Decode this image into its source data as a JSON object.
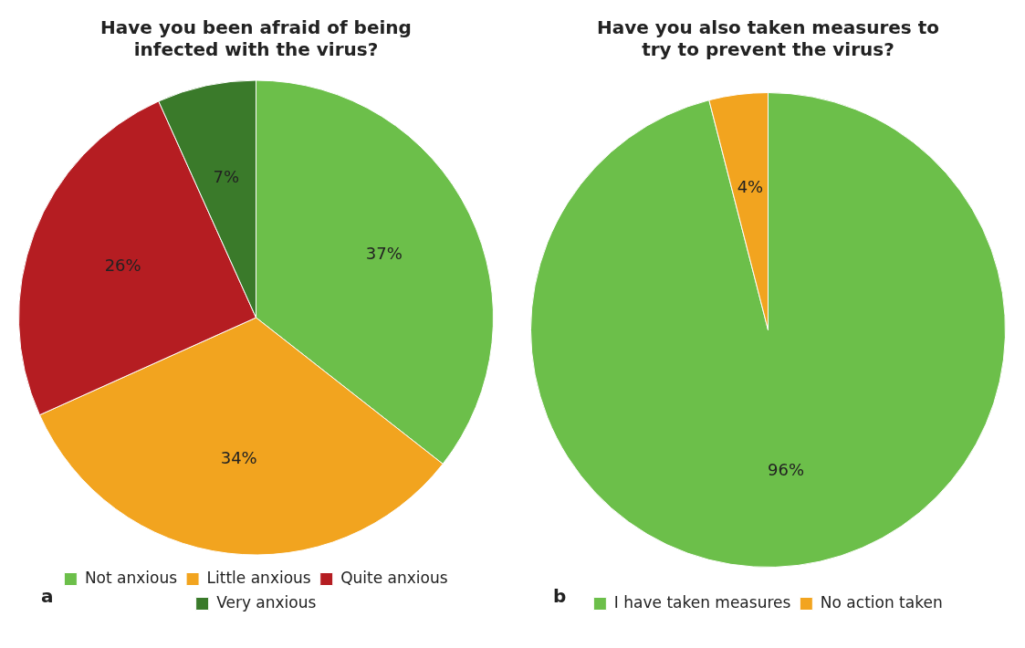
{
  "chart_data": [
    {
      "type": "pie",
      "title": "Have you been afraid of being infected with the virus?",
      "categories": [
        "Not anxious",
        "Little anxious",
        "Quite anxious",
        "Very anxious"
      ],
      "values": [
        37,
        34,
        26,
        7
      ],
      "colors": [
        "#6cbf4a",
        "#f2a41f",
        "#b51d22",
        "#3a7a2a"
      ],
      "value_labels": [
        "37%",
        "34%",
        "26%",
        "7%"
      ],
      "legend": "bottom",
      "annotations": [
        "a"
      ]
    },
    {
      "type": "pie",
      "title": "Have you also taken measures to try to prevent the virus?",
      "categories": [
        "I have taken measures",
        "No action taken"
      ],
      "values": [
        96,
        4
      ],
      "colors": [
        "#6cbf4a",
        "#f2a41f"
      ],
      "value_labels": [
        "96%",
        "4%"
      ],
      "legend": "bottom",
      "annotations": [
        "b"
      ]
    }
  ]
}
